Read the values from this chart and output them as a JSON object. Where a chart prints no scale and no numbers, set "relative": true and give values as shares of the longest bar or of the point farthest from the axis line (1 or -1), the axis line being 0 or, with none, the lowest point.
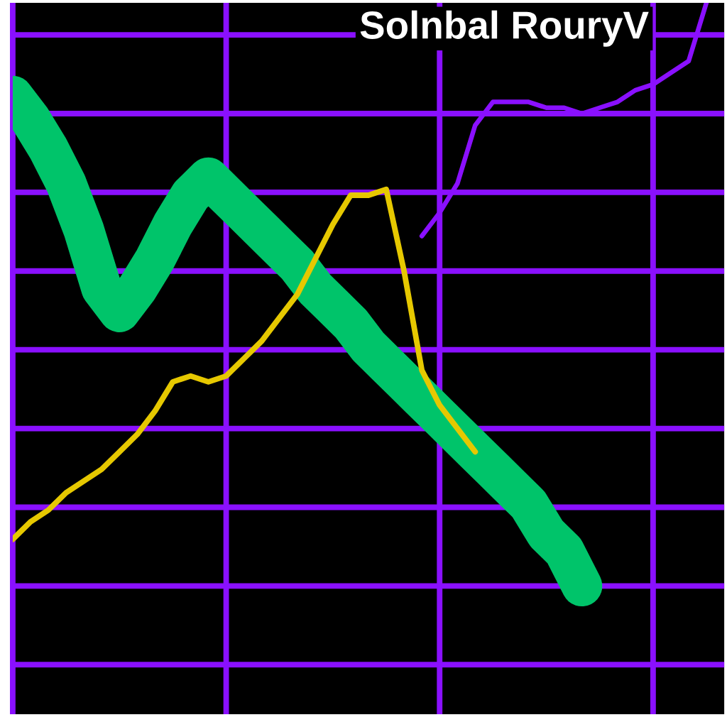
{
  "chart_data": {
    "type": "line",
    "title": "Solnbal RouryV",
    "relative": true,
    "grid": true,
    "marker": "none",
    "line_style": "solid",
    "categories": [
      null,
      null,
      null,
      null,
      null,
      null,
      null,
      null,
      null,
      null,
      null,
      null,
      null,
      null,
      null,
      null,
      null,
      null,
      null,
      null,
      null,
      null,
      null,
      null,
      null,
      null,
      null,
      null,
      null,
      null,
      null,
      null,
      null,
      null,
      null,
      null,
      null,
      null,
      null,
      null,
      null
    ],
    "series": [
      {
        "color": "#00c46a",
        "values": [
          0.84,
          0.8,
          0.75,
          0.69,
          0.61,
          0.51,
          0.47,
          0.51,
          0.56,
          0.62,
          0.67,
          0.7,
          0.67,
          0.64,
          0.61,
          0.58,
          0.55,
          0.51,
          0.48,
          0.45,
          0.41,
          0.38,
          0.35,
          0.32,
          0.29,
          0.26,
          0.23,
          0.2,
          0.17,
          0.14,
          0.09,
          0.06,
          0,
          null,
          null,
          null,
          null,
          null,
          null,
          null,
          null
        ]
      },
      {
        "color": "#e6c800",
        "values": [
          0.08,
          0.11,
          0.13,
          0.16,
          0.18,
          0.2,
          0.23,
          0.26,
          0.3,
          0.35,
          0.36,
          0.35,
          0.36,
          0.39,
          0.42,
          0.46,
          0.5,
          0.56,
          0.62,
          0.67,
          0.67,
          0.68,
          0.54,
          0.37,
          0.31,
          0.27,
          0.23,
          null,
          null,
          null,
          null,
          null,
          null,
          null,
          null,
          null,
          null,
          null,
          null,
          null,
          null
        ]
      },
      {
        "color": "#8a10ff",
        "values": [
          null,
          null,
          null,
          null,
          null,
          null,
          null,
          null,
          null,
          null,
          null,
          null,
          null,
          null,
          null,
          null,
          null,
          null,
          null,
          null,
          null,
          null,
          null,
          0.6,
          0.64,
          0.69,
          0.79,
          0.83,
          0.83,
          0.83,
          0.82,
          0.82,
          0.81,
          0.82,
          0.83,
          0.85,
          0.86,
          0.88,
          0.9,
          1,
          null
        ]
      }
    ]
  }
}
